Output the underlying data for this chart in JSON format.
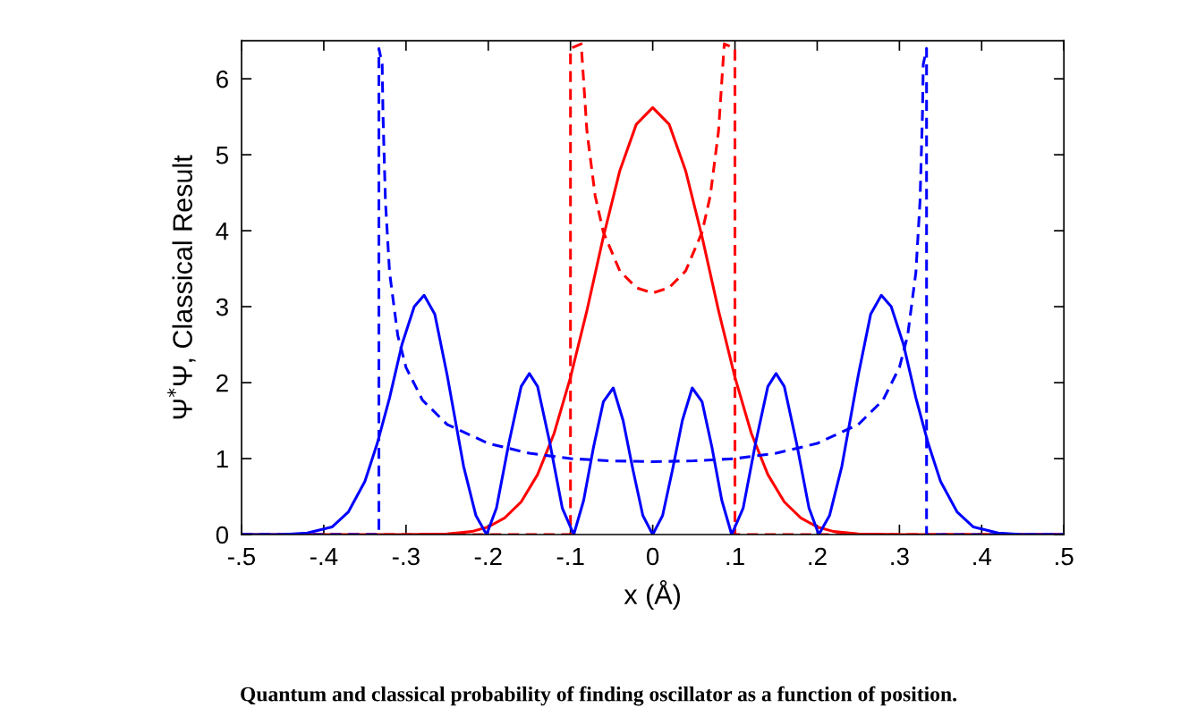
{
  "chart_data": {
    "type": "line",
    "xlabel": "x (Å)",
    "ylabel": "Ψ$^{*}$Ψ, Classical Result",
    "annotations": [
      "Quantum and classical probability of finding oscillator as a function of position."
    ],
    "xlim": [
      -0.5,
      0.5
    ],
    "ylim": [
      0,
      6.5
    ],
    "xticks": [
      {
        "value": -0.5,
        "label": "-.5"
      },
      {
        "value": -0.4,
        "label": "-.4"
      },
      {
        "value": -0.3,
        "label": "-.3"
      },
      {
        "value": -0.2,
        "label": "-.2"
      },
      {
        "value": -0.1,
        "label": "-.1"
      },
      0,
      {
        "value": 0.1,
        "label": ".1"
      },
      {
        "value": 0.2,
        "label": ".2"
      },
      {
        "value": 0.3,
        "label": ".3"
      },
      {
        "value": 0.4,
        "label": ".4"
      },
      {
        "value": 0.5,
        "label": ".5"
      }
    ],
    "yticks": [
      0,
      1,
      2,
      3,
      4,
      5,
      6
    ],
    "grid": false,
    "legend": false,
    "marker": "none",
    "series": [
      {
        "color": "#ff0000",
        "line_style": "solid",
        "x": [
          -0.5,
          -0.3,
          -0.25,
          -0.22,
          -0.2,
          -0.18,
          -0.16,
          -0.14,
          -0.12,
          -0.1,
          -0.08,
          -0.06,
          -0.04,
          -0.02,
          0,
          0.02,
          0.04,
          0.06,
          0.08,
          0.1,
          0.12,
          0.14,
          0.16,
          0.18,
          0.2,
          0.22,
          0.25,
          0.3,
          0.5
        ],
        "values": [
          0,
          0,
          0.01,
          0.04,
          0.1,
          0.22,
          0.43,
          0.79,
          1.33,
          2.07,
          2.95,
          3.92,
          4.79,
          5.4,
          5.62,
          5.4,
          4.79,
          3.92,
          2.95,
          2.07,
          1.33,
          0.79,
          0.43,
          0.22,
          0.1,
          0.04,
          0.01,
          0,
          0
        ]
      },
      {
        "color": "#ff0000",
        "line_style": "dashed",
        "x": [
          -0.5,
          -0.1,
          -0.1,
          -0.087,
          -0.08,
          -0.07,
          -0.06,
          -0.04,
          -0.02,
          0,
          0.02,
          0.04,
          0.06,
          0.07,
          0.08,
          0.087,
          0.1,
          0.1,
          0.5
        ],
        "values": [
          0,
          0,
          6.4,
          6.46,
          5.31,
          4.46,
          3.98,
          3.47,
          3.25,
          3.18,
          3.25,
          3.47,
          3.98,
          4.46,
          5.31,
          6.46,
          6.4,
          0,
          0
        ]
      },
      {
        "color": "#0000ff",
        "line_style": "solid",
        "x": [
          -0.5,
          -0.45,
          -0.42,
          -0.39,
          -0.37,
          -0.35,
          -0.335,
          -0.32,
          -0.305,
          -0.29,
          -0.278,
          -0.265,
          -0.25,
          -0.23,
          -0.215,
          -0.202,
          -0.19,
          -0.175,
          -0.16,
          -0.15,
          -0.14,
          -0.125,
          -0.11,
          -0.096,
          -0.084,
          -0.072,
          -0.06,
          -0.048,
          -0.036,
          -0.024,
          -0.012,
          0,
          0.012,
          0.024,
          0.036,
          0.048,
          0.06,
          0.072,
          0.084,
          0.096,
          0.11,
          0.125,
          0.14,
          0.15,
          0.16,
          0.175,
          0.19,
          0.202,
          0.215,
          0.23,
          0.25,
          0.265,
          0.278,
          0.29,
          0.305,
          0.32,
          0.335,
          0.35,
          0.37,
          0.39,
          0.42,
          0.45,
          0.5
        ],
        "values": [
          0,
          0,
          0.02,
          0.1,
          0.3,
          0.7,
          1.2,
          1.8,
          2.5,
          3.0,
          3.15,
          2.9,
          2.1,
          0.9,
          0.25,
          0,
          0.35,
          1.2,
          1.95,
          2.12,
          1.95,
          1.2,
          0.35,
          0,
          0.45,
          1.15,
          1.75,
          1.93,
          1.5,
          0.85,
          0.25,
          0,
          0.25,
          0.85,
          1.5,
          1.93,
          1.75,
          1.15,
          0.45,
          0,
          0.35,
          1.2,
          1.95,
          2.12,
          1.95,
          1.2,
          0.35,
          0,
          0.25,
          0.9,
          2.1,
          2.9,
          3.15,
          3.0,
          2.5,
          1.8,
          1.2,
          0.7,
          0.3,
          0.1,
          0.02,
          0,
          0
        ]
      },
      {
        "color": "#0000ff",
        "line_style": "dashed",
        "x": [
          -0.5,
          -0.333,
          -0.333,
          -0.329,
          -0.328,
          -0.325,
          -0.32,
          -0.31,
          -0.3,
          -0.28,
          -0.25,
          -0.2,
          -0.15,
          -0.1,
          -0.05,
          0,
          0.05,
          0.1,
          0.15,
          0.2,
          0.25,
          0.28,
          0.3,
          0.31,
          0.32,
          0.325,
          0.328,
          0.329,
          0.333,
          0.333,
          0.5
        ],
        "values": [
          0,
          0,
          6.4,
          6.19,
          5.53,
          4.38,
          3.45,
          2.62,
          2.2,
          1.77,
          1.45,
          1.2,
          1.07,
          1.0,
          0.97,
          0.96,
          0.97,
          1.0,
          1.07,
          1.2,
          1.45,
          1.77,
          2.2,
          2.62,
          3.45,
          4.38,
          5.53,
          6.19,
          6.4,
          0,
          0
        ]
      }
    ]
  }
}
